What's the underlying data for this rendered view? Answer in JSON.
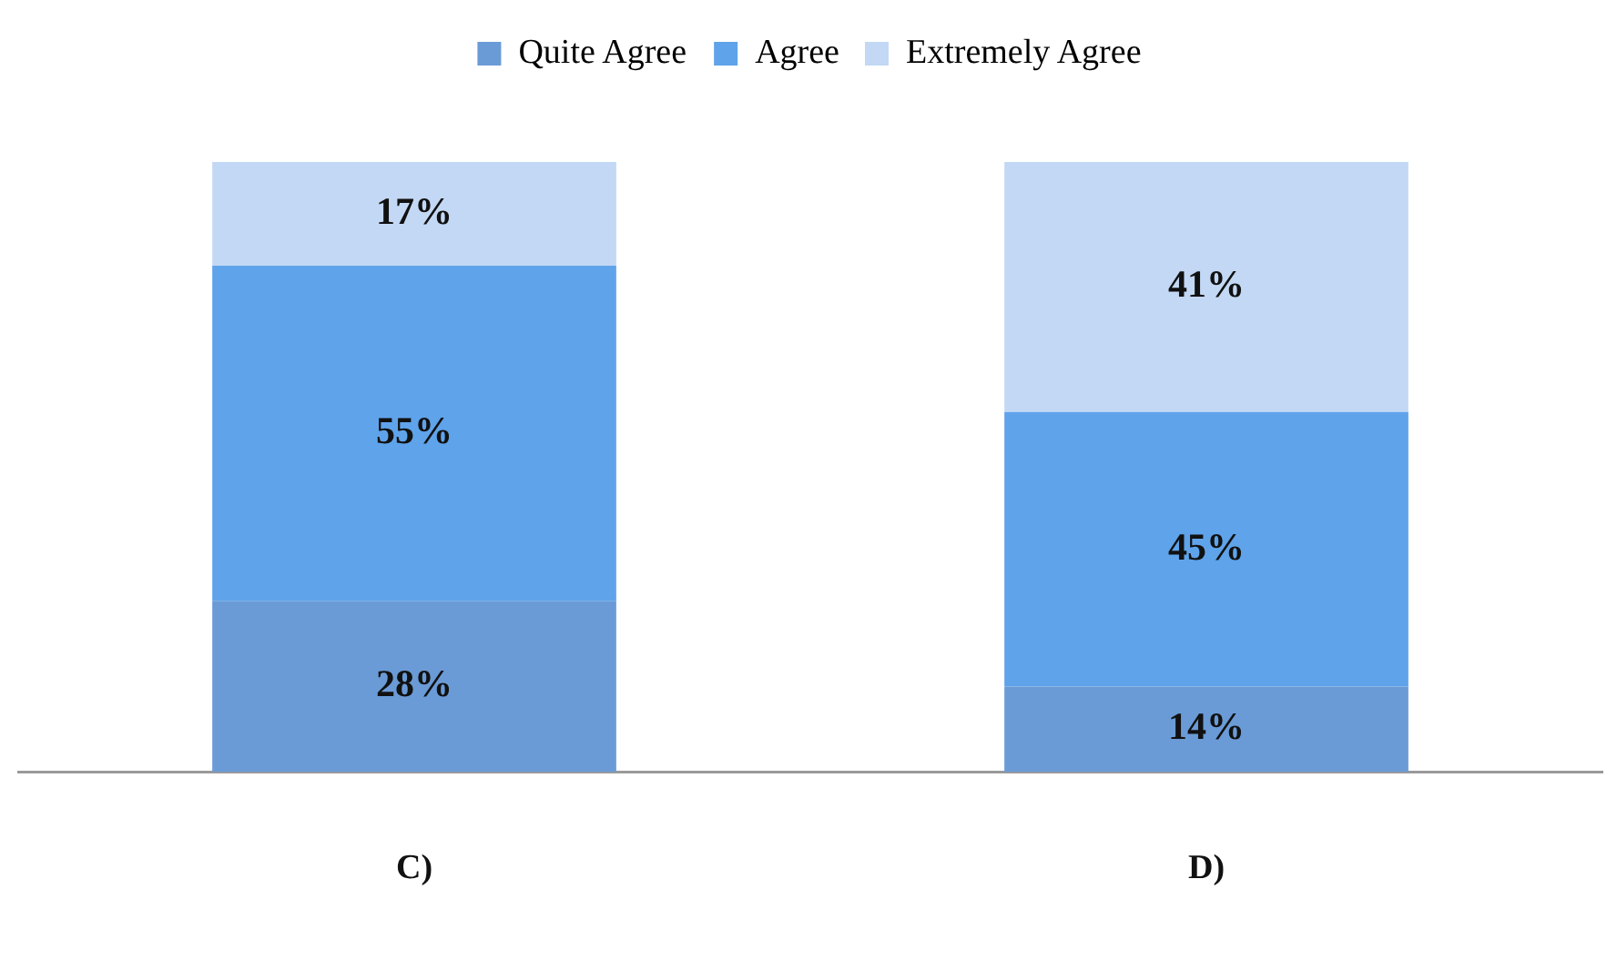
{
  "chart_data": {
    "type": "bar",
    "stacked": true,
    "categories": [
      "C)",
      "D)"
    ],
    "series": [
      {
        "name": "Quite Agree",
        "color": "#6a9bd6",
        "values": [
          28,
          14
        ],
        "value_labels": [
          "28%",
          "14%"
        ]
      },
      {
        "name": "Agree",
        "color": "#5fa3ea",
        "values": [
          55,
          45
        ],
        "value_labels": [
          "55%",
          "45%"
        ]
      },
      {
        "name": "Extremely Agree",
        "color": "#c3d8f4",
        "values": [
          17,
          41
        ],
        "value_labels": [
          "17%",
          "41%"
        ]
      }
    ],
    "legend": "top",
    "grid": false,
    "tick_labels": "x"
  }
}
